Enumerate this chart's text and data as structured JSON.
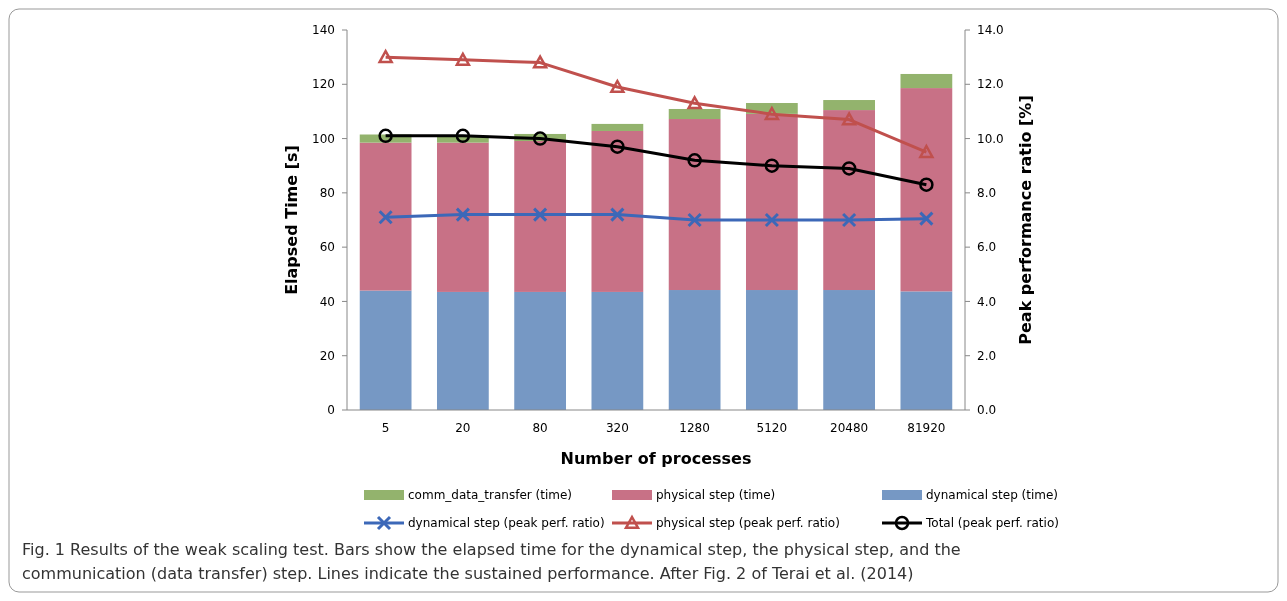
{
  "chart_data": {
    "type": "bar",
    "stacked": true,
    "xlabel": "Number of processes",
    "ylabel": "Elapsed Time [s]",
    "y2label": "Peak performance ratio [%]",
    "categories": [
      "5",
      "20",
      "80",
      "320",
      "1280",
      "5120",
      "20480",
      "81920"
    ],
    "series": [
      {
        "name": "dynamical step (time)",
        "color": "#7698c4",
        "values": [
          44,
          43.5,
          43.5,
          43.5,
          44.2,
          44.2,
          44.2,
          43.7
        ]
      },
      {
        "name": "physical step (time)",
        "color": "#c87186",
        "values": [
          54.5,
          55,
          55.6,
          59.3,
          63,
          64.9,
          66.3,
          74.9
        ]
      },
      {
        "name": "comm_data_transfer (time)",
        "color": "#93b36d",
        "values": [
          3,
          2.5,
          2.6,
          2.6,
          3.7,
          4,
          3.7,
          5.2
        ]
      },
      {
        "name": "dynamical step (peak perf. ratio)",
        "type": "line",
        "axis": "y2",
        "marker": "cross",
        "color": "#3c68b8",
        "values": [
          7.1,
          7.2,
          7.2,
          7.2,
          7.0,
          7.0,
          7.0,
          7.05
        ]
      },
      {
        "name": "physical step (peak perf. ratio)",
        "type": "line",
        "axis": "y2",
        "marker": "triangle",
        "color": "#c0504d",
        "values": [
          13.0,
          12.9,
          12.8,
          11.9,
          11.3,
          10.9,
          10.7,
          9.5
        ]
      },
      {
        "name": "Total (peak perf. ratio)",
        "type": "line",
        "axis": "y2",
        "marker": "circle",
        "color": "#000000",
        "values": [
          10.1,
          10.1,
          10.0,
          9.7,
          9.2,
          9.0,
          8.9,
          8.3
        ]
      }
    ],
    "ylim": [
      0,
      140
    ],
    "yticks": [
      0,
      20,
      40,
      60,
      80,
      100,
      120,
      140
    ],
    "y2lim": [
      0,
      14
    ],
    "y2ticks": [
      {
        "value": 0,
        "label": "0.0"
      },
      {
        "value": 2,
        "label": "2.0"
      },
      {
        "value": 4,
        "label": "4.0"
      },
      {
        "value": 6,
        "label": "6.0"
      },
      {
        "value": 8,
        "label": "8.0"
      },
      {
        "value": 10,
        "label": "10.0"
      },
      {
        "value": 12,
        "label": "12.0"
      },
      {
        "value": 14,
        "label": "14.0"
      }
    ],
    "grid": false,
    "legend": "bottom",
    "annotations": [
      "Fig. 1 Results of the weak scaling test. Bars show the elapsed time for the dynamical step, the physical step, and the communication (data transfer) step. Lines indicate the sustained performance. After Fig. 2 of Terai et al. (2014)"
    ]
  }
}
